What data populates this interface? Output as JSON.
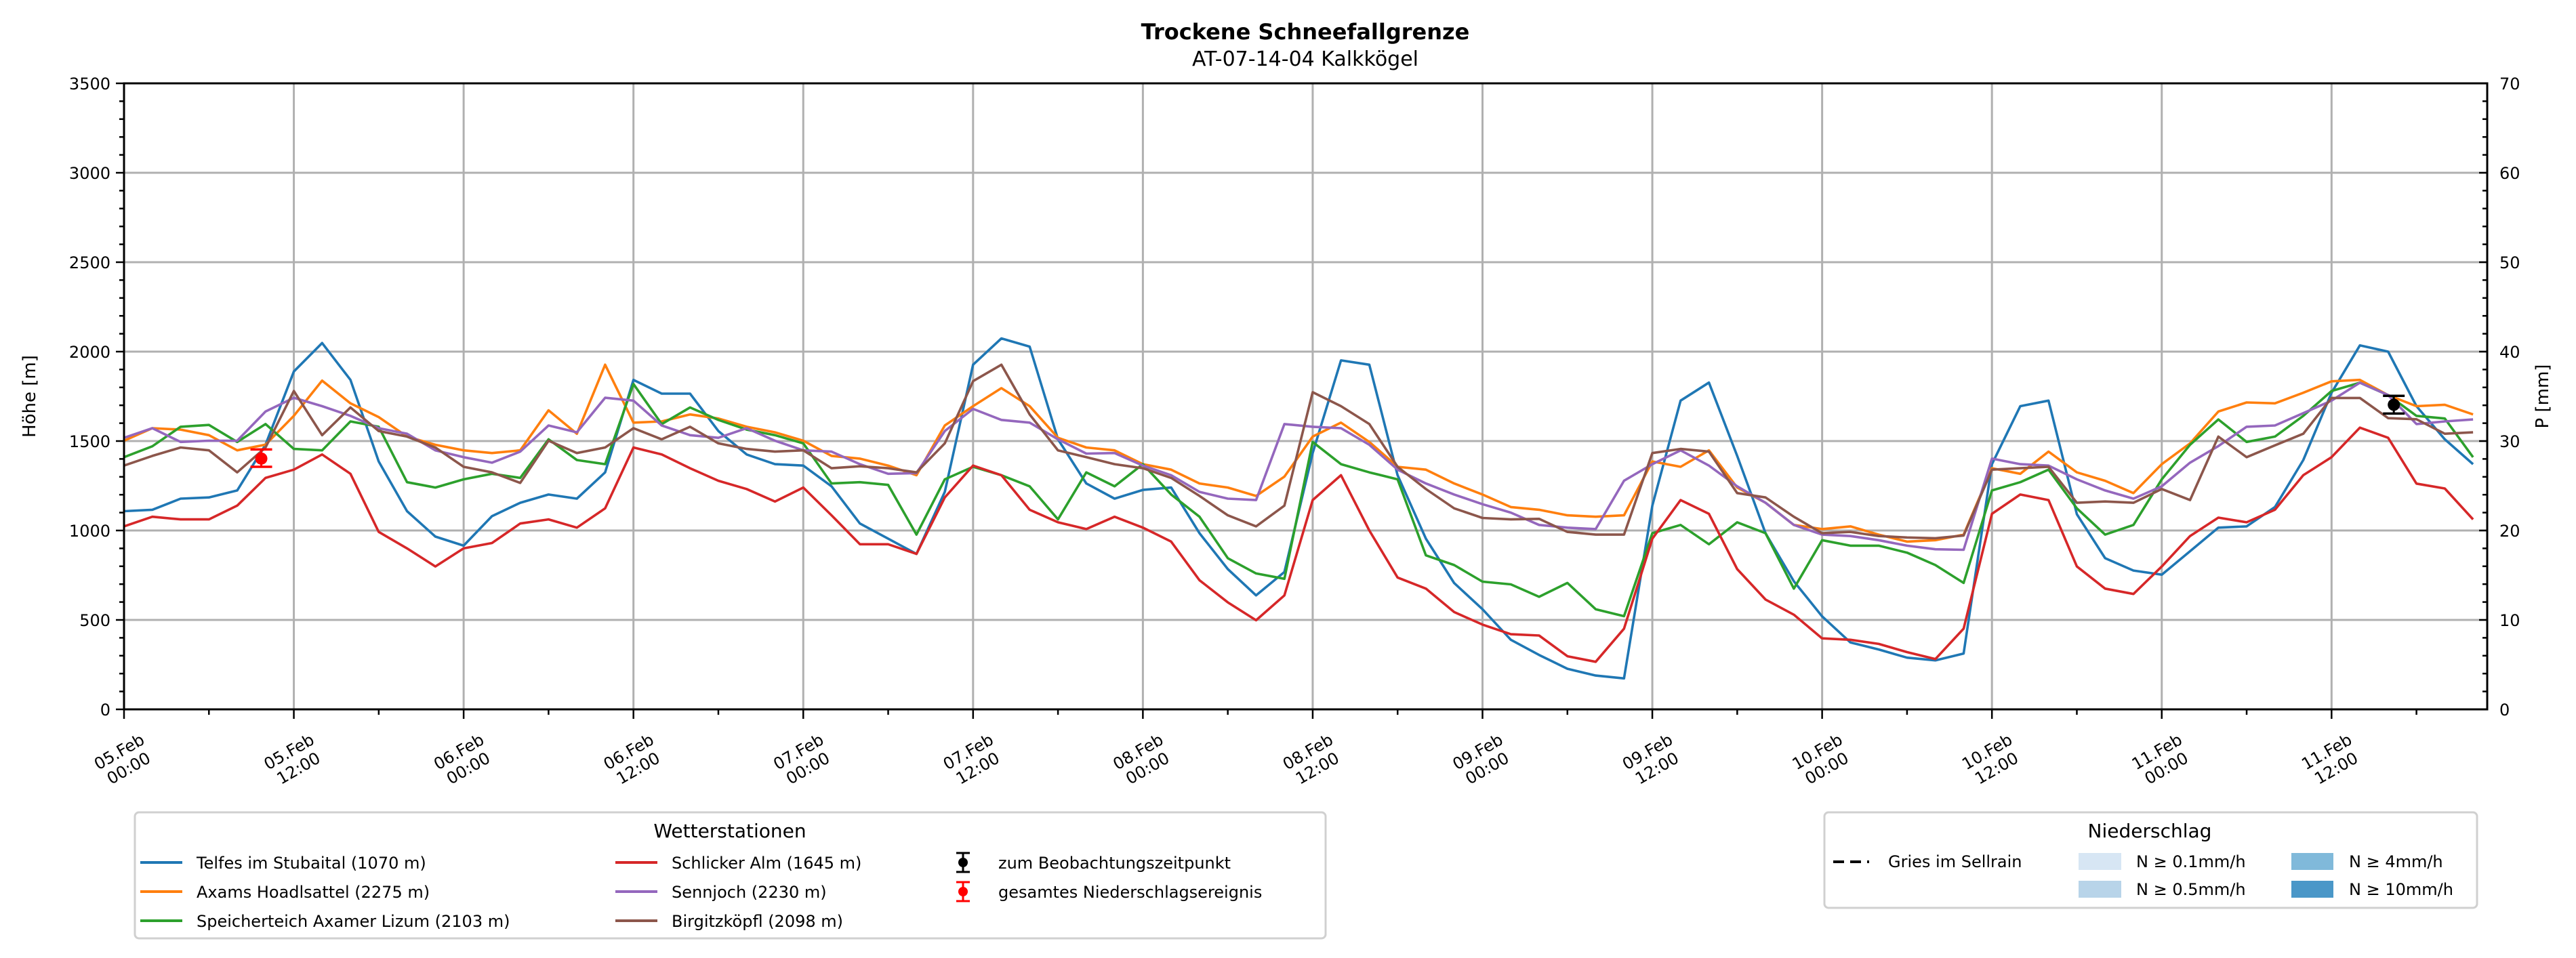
{
  "chart_data": {
    "type": "line",
    "title": "Trockene Schneefallgrenze",
    "subtitle": "AT-07-14-04 Kalkkögel",
    "ylabel": "Höhe [m]",
    "ylabel_right": "P [mm]",
    "ylim": [
      0,
      3500
    ],
    "ylim_right": [
      0,
      70
    ],
    "yticks": [
      0,
      500,
      1000,
      1500,
      2000,
      2500,
      3000,
      3500
    ],
    "yticks_right": [
      0,
      10,
      20,
      30,
      40,
      50,
      60,
      70
    ],
    "grid": true,
    "x_unit": "hours since 05.Feb 00:00",
    "x_range_hours": [
      0,
      167
    ],
    "x_step_hours": 2,
    "xticks": [
      {
        "h": 0,
        "date": "05.Feb",
        "time": "00:00"
      },
      {
        "h": 12,
        "date": "05.Feb",
        "time": "12:00"
      },
      {
        "h": 24,
        "date": "06.Feb",
        "time": "00:00"
      },
      {
        "h": 36,
        "date": "06.Feb",
        "time": "12:00"
      },
      {
        "h": 48,
        "date": "07.Feb",
        "time": "00:00"
      },
      {
        "h": 60,
        "date": "07.Feb",
        "time": "12:00"
      },
      {
        "h": 72,
        "date": "08.Feb",
        "time": "00:00"
      },
      {
        "h": 84,
        "date": "08.Feb",
        "time": "12:00"
      },
      {
        "h": 96,
        "date": "09.Feb",
        "time": "00:00"
      },
      {
        "h": 108,
        "date": "09.Feb",
        "time": "12:00"
      },
      {
        "h": 120,
        "date": "10.Feb",
        "time": "00:00"
      },
      {
        "h": 132,
        "date": "10.Feb",
        "time": "12:00"
      },
      {
        "h": 144,
        "date": "11.Feb",
        "time": "00:00"
      },
      {
        "h": 156,
        "date": "11.Feb",
        "time": "12:00"
      }
    ],
    "series": [
      {
        "name": "Telfes im Stubaital (1070 m)",
        "color": "#1f77b4",
        "values": [
          1108,
          1116,
          1178,
          1185,
          1224,
          1480,
          1889,
          2048,
          1842,
          1386,
          1108,
          966,
          915,
          1080,
          1155,
          1201,
          1178,
          1325,
          1842,
          1765,
          1765,
          1556,
          1425,
          1371,
          1363,
          1247,
          1039,
          954,
          869,
          1216,
          1927,
          2074,
          2028,
          1510,
          1263,
          1178,
          1227,
          1240,
          985,
          784,
          637,
          768,
          1433,
          1951,
          1927,
          1309,
          954,
          706,
          560,
          389,
          304,
          227,
          189,
          173,
          1139,
          1726,
          1827,
          1417,
          985,
          716,
          520,
          374,
          335,
          289,
          274,
          312,
          1371,
          1695,
          1726,
          1091,
          845,
          776,
          753,
          884,
          1016,
          1023,
          1131,
          1394,
          1770,
          2035,
          2000,
          1695,
          1510,
          1371
        ]
      },
      {
        "name": "Axams Hoadlsattel (2275 m)",
        "color": "#ff7f0e",
        "values": [
          1502,
          1572,
          1564,
          1533,
          1448,
          1480,
          1641,
          1838,
          1711,
          1634,
          1525,
          1479,
          1448,
          1433,
          1448,
          1672,
          1541,
          1927,
          1603,
          1610,
          1649,
          1626,
          1580,
          1549,
          1502,
          1417,
          1402,
          1363,
          1309,
          1587,
          1695,
          1796,
          1695,
          1518,
          1464,
          1448,
          1371,
          1340,
          1263,
          1240,
          1193,
          1301,
          1525,
          1603,
          1495,
          1356,
          1340,
          1263,
          1201,
          1131,
          1116,
          1085,
          1077,
          1085,
          1386,
          1356,
          1448,
          1240,
          1155,
          1031,
          1008,
          1023,
          977,
          938,
          946,
          977,
          1348,
          1317,
          1441,
          1325,
          1278,
          1209,
          1371,
          1487,
          1665,
          1716,
          1711,
          1770,
          1834,
          1842,
          1757,
          1695,
          1703,
          1649
        ]
      },
      {
        "name": "Speicherteich Axamer Lizum (2103 m)",
        "color": "#2ca02c",
        "values": [
          1410,
          1471,
          1580,
          1590,
          1495,
          1595,
          1456,
          1448,
          1610,
          1580,
          1270,
          1240,
          1286,
          1317,
          1294,
          1510,
          1394,
          1371,
          1819,
          1595,
          1688,
          1618,
          1564,
          1533,
          1487,
          1263,
          1270,
          1255,
          977,
          1286,
          1356,
          1309,
          1247,
          1062,
          1325,
          1247,
          1371,
          1201,
          1077,
          845,
          760,
          730,
          1495,
          1371,
          1325,
          1286,
          861,
          807,
          714,
          699,
          629,
          707,
          560,
          521,
          985,
          1031,
          923,
          1046,
          985,
          675,
          946,
          915,
          915,
          876,
          807,
          707,
          1224,
          1270,
          1340,
          1124,
          977,
          1031,
          1286,
          1479,
          1621,
          1495,
          1525,
          1641,
          1780,
          1826,
          1757,
          1641,
          1626,
          1410
        ]
      },
      {
        "name": "Schlicker Alm (1645 m)",
        "color": "#d62728",
        "values": [
          1023,
          1077,
          1062,
          1062,
          1139,
          1294,
          1340,
          1425,
          1317,
          992,
          900,
          799,
          900,
          930,
          1039,
          1062,
          1016,
          1124,
          1464,
          1425,
          1348,
          1278,
          1232,
          1162,
          1240,
          1085,
          923,
          923,
          869,
          1185,
          1363,
          1309,
          1116,
          1046,
          1008,
          1077,
          1016,
          938,
          722,
          598,
          498,
          637,
          1170,
          1309,
          1000,
          737,
          675,
          544,
          474,
          420,
          413,
          297,
          266,
          451,
          954,
          1170,
          1093,
          784,
          614,
          529,
          397,
          389,
          366,
          320,
          281,
          451,
          1093,
          1201,
          1170,
          799,
          675,
          645,
          799,
          969,
          1072,
          1046,
          1116,
          1309,
          1410,
          1575,
          1518,
          1262,
          1235,
          1062
        ]
      },
      {
        "name": "Sennjoch (2230 m)",
        "color": "#9467bd",
        "values": [
          1518,
          1572,
          1495,
          1502,
          1502,
          1665,
          1742,
          1695,
          1641,
          1572,
          1541,
          1448,
          1410,
          1379,
          1441,
          1587,
          1549,
          1742,
          1726,
          1587,
          1533,
          1518,
          1572,
          1502,
          1448,
          1441,
          1371,
          1317,
          1321,
          1556,
          1680,
          1618,
          1603,
          1510,
          1430,
          1433,
          1363,
          1309,
          1216,
          1178,
          1170,
          1595,
          1580,
          1572,
          1479,
          1340,
          1263,
          1201,
          1147,
          1100,
          1031,
          1016,
          1008,
          1278,
          1371,
          1448,
          1363,
          1247,
          1155,
          1031,
          977,
          969,
          946,
          915,
          895,
          892,
          1402,
          1371,
          1363,
          1286,
          1224,
          1178,
          1247,
          1379,
          1472,
          1580,
          1587,
          1656,
          1726,
          1826,
          1757,
          1595,
          1610,
          1621
        ]
      },
      {
        "name": "Birgitzköpfl (2098 m)",
        "color": "#8c564b",
        "values": [
          1363,
          1417,
          1464,
          1448,
          1325,
          1464,
          1780,
          1533,
          1688,
          1556,
          1525,
          1464,
          1356,
          1325,
          1266,
          1502,
          1433,
          1464,
          1572,
          1510,
          1580,
          1487,
          1456,
          1441,
          1448,
          1348,
          1359,
          1348,
          1325,
          1487,
          1835,
          1927,
          1649,
          1448,
          1410,
          1371,
          1348,
          1294,
          1193,
          1085,
          1023,
          1139,
          1773,
          1695,
          1595,
          1356,
          1232,
          1124,
          1070,
          1062,
          1065,
          992,
          977,
          977,
          1433,
          1456,
          1441,
          1209,
          1185,
          1077,
          985,
          992,
          969,
          961,
          957,
          972,
          1340,
          1348,
          1356,
          1155,
          1162,
          1155,
          1232,
          1170,
          1525,
          1410,
          1476,
          1541,
          1741,
          1741,
          1628,
          1622,
          1541,
          1549
        ]
      }
    ],
    "markers": [
      {
        "name": "gesamtes Niederschlagsereignis",
        "color": "#ff0000",
        "h": 9.7,
        "value": 1402,
        "err_low": 1356,
        "err_high": 1453
      },
      {
        "name": "zum Beobachtungszeitpunkt",
        "color": "#000000",
        "h": 160.4,
        "value": 1703,
        "err_low": 1654,
        "err_high": 1753
      }
    ],
    "legend_stations": {
      "title": "Wetterstationen",
      "placement": "below-left",
      "marker_labels": [
        "zum Beobachtungszeitpunkt",
        "gesamtes Niederschlagsereignis"
      ]
    },
    "legend_precip": {
      "title": "Niederschlag",
      "placement": "below-right",
      "line_label": "Gries im Sellrain",
      "classes": [
        {
          "label": "N ≥ 0.1mm/h",
          "color": "#d7e6f4"
        },
        {
          "label": "N ≥ 0.5mm/h",
          "color": "#b8d4e9"
        },
        {
          "label": "N ≥ 4mm/h",
          "color": "#80b9da"
        },
        {
          "label": "N ≥ 10mm/h",
          "color": "#4a97c8"
        }
      ]
    }
  }
}
